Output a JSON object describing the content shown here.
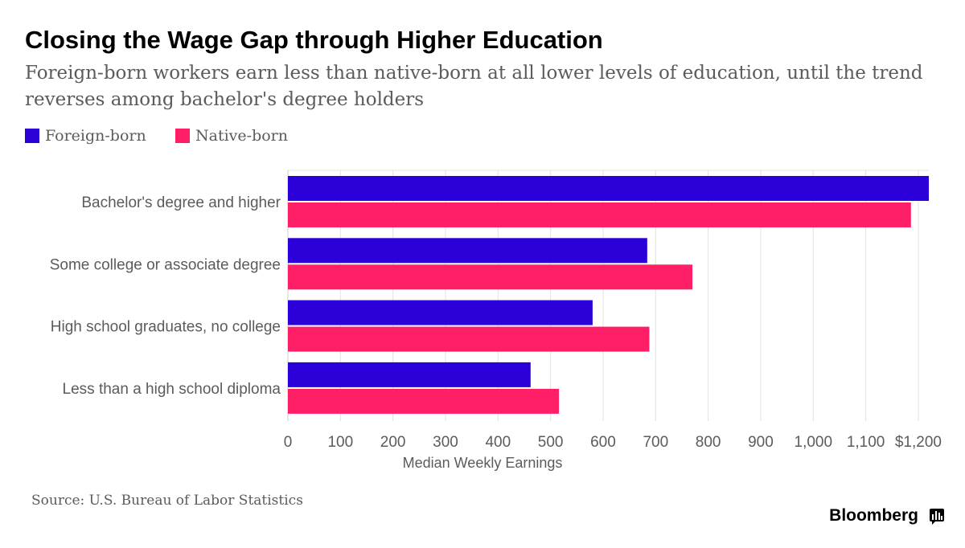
{
  "header": {
    "title": "Closing the Wage Gap through Higher Education",
    "subtitle": "Foreign-born workers earn less than native-born at all lower levels of education, until the trend reverses among bachelor's degree holders"
  },
  "legend": [
    {
      "label": "Foreign-born",
      "color": "#2c00d9"
    },
    {
      "label": "Native-born",
      "color": "#ff1f66"
    }
  ],
  "footer": {
    "source": "Source: U.S. Bureau of Labor Statistics",
    "brand": "Bloomberg"
  },
  "chart_data": {
    "type": "bar",
    "orientation": "horizontal",
    "categories": [
      "Bachelor's degree and higher",
      "Some college or associate degree",
      "High school graduates, no college",
      "Less than a high school diploma"
    ],
    "series": [
      {
        "name": "Foreign-born",
        "color": "#2c00d9",
        "values": [
          1220,
          684,
          580,
          462
        ]
      },
      {
        "name": "Native-born",
        "color": "#ff1f66",
        "values": [
          1186,
          770,
          688,
          516
        ]
      }
    ],
    "xlabel": "Median Weekly Earnings",
    "ylabel": "",
    "xlim": [
      0,
      1220
    ],
    "xticks": [
      0,
      100,
      200,
      300,
      400,
      500,
      600,
      700,
      800,
      900,
      1000,
      1100,
      1200
    ],
    "xtick_labels": [
      "0",
      "100",
      "200",
      "300",
      "400",
      "500",
      "600",
      "700",
      "800",
      "900",
      "1,000",
      "1,100",
      "$1,200"
    ],
    "grid": true,
    "legend_position": "top-left"
  }
}
